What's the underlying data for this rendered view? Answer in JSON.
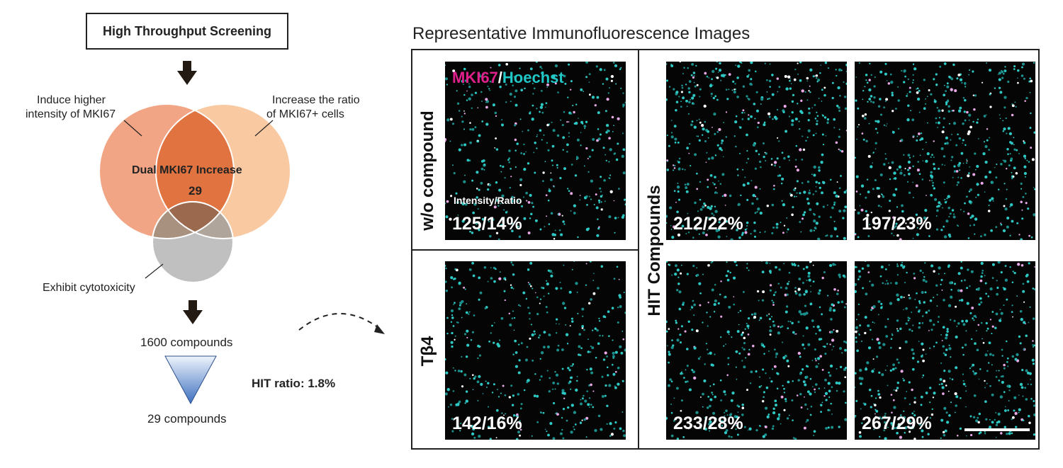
{
  "flow": {
    "title": "High Throughput Screening",
    "venn": {
      "left_set": [
        "Induce higher",
        "intensity of MKI67"
      ],
      "right_set": [
        "Increase the ratio",
        "of MKI67+ cells"
      ],
      "bottom_set": "Exhibit cytotoxicity",
      "intersection_label": "Dual MKI67 Increase",
      "intersection_count": "29"
    },
    "compounds_start": "1600 compounds",
    "compounds_end": "29 compounds",
    "hit_ratio": "HIT ratio: 1.8%"
  },
  "panel": {
    "title": "Representative Immunofluorescence Images",
    "stain_marker": "MKI67",
    "stain_sep": "/",
    "stain_nuclear": "Hoechst",
    "row_wo": "w/o compound",
    "row_tb4": "Tβ4",
    "column_hit": "HIT Compounds",
    "intensity_ratio_label": "Intensity/Ratio",
    "images": [
      {
        "id": "wo",
        "value": "125/14%"
      },
      {
        "id": "tb4",
        "value": "142/16%"
      },
      {
        "id": "hit1",
        "value": "212/22%"
      },
      {
        "id": "hit2",
        "value": "197/23%"
      },
      {
        "id": "hit3",
        "value": "233/28%"
      },
      {
        "id": "hit4",
        "value": "267/29%"
      }
    ]
  },
  "colors": {
    "left_circle": "#f0a080",
    "right_circle": "#f8c8a0",
    "overlap": "#e07040",
    "cytotox_circle": "#bdbdbd",
    "marker": "#e0208a",
    "nuclear": "#20c8c8",
    "triangle_top": "#e8f0fb",
    "triangle_bottom": "#3d6fbf"
  }
}
